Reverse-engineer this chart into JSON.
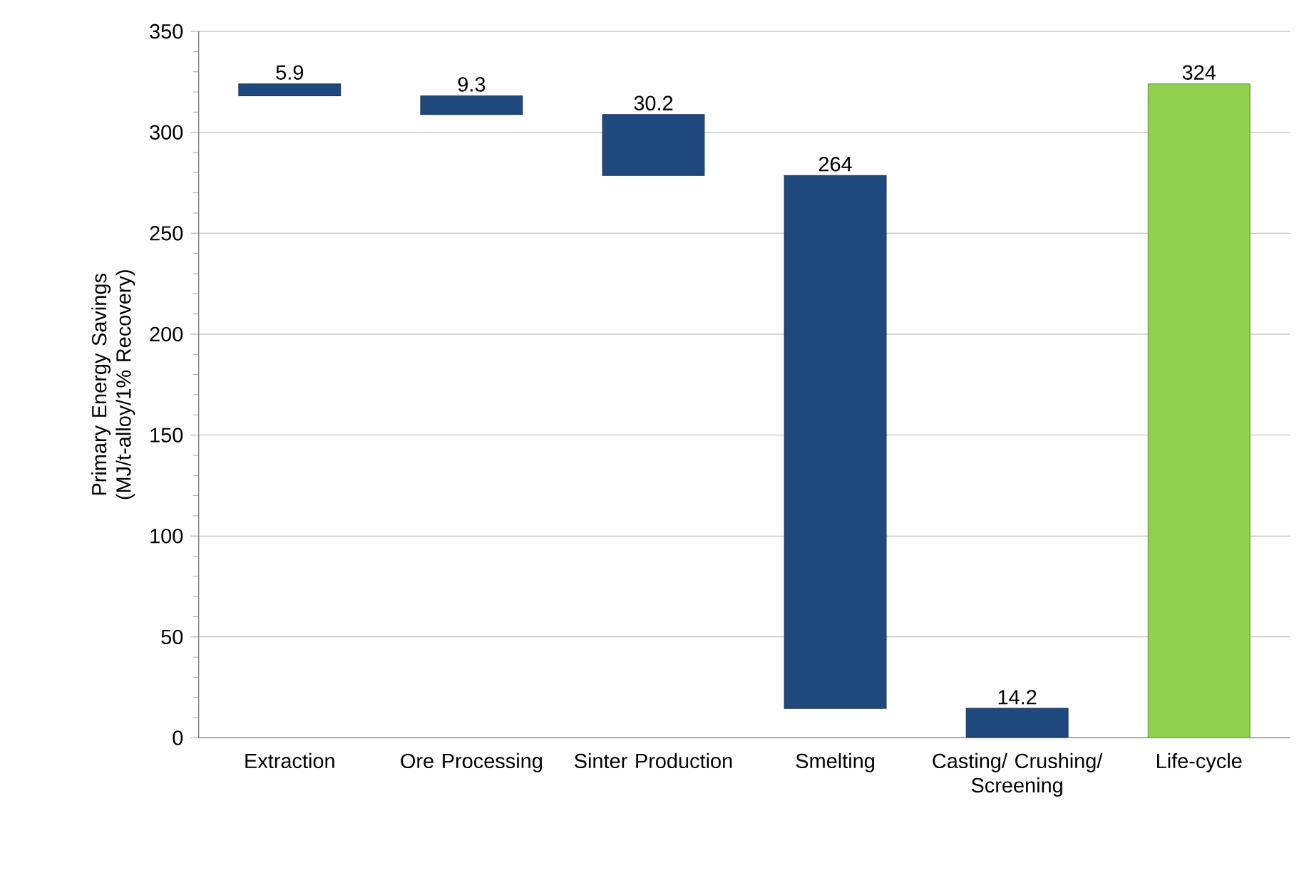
{
  "chart_data": {
    "type": "bar",
    "ylabel": "Primary Energy Savings (MJ/t-alloy/1% Recovery)",
    "categories": [
      "Extraction",
      "Ore Processing",
      "Sinter Production",
      "Smelting",
      "Casting/ Crushing/ Screening",
      "Life-cycle"
    ],
    "values": [
      5.9,
      9.3,
      30.2,
      264,
      14.2,
      324
    ],
    "base": [
      318.1,
      308.8,
      278.6,
      14.6,
      0.4,
      0
    ],
    "colors": [
      "#1f497d",
      "#1f497d",
      "#1f497d",
      "#1f497d",
      "#1f497d",
      "#92d050"
    ],
    "ylim": [
      0,
      350
    ],
    "yticks": [
      0,
      50,
      100,
      150,
      200,
      250,
      300,
      350
    ],
    "grid": "y",
    "data_labels": true
  }
}
